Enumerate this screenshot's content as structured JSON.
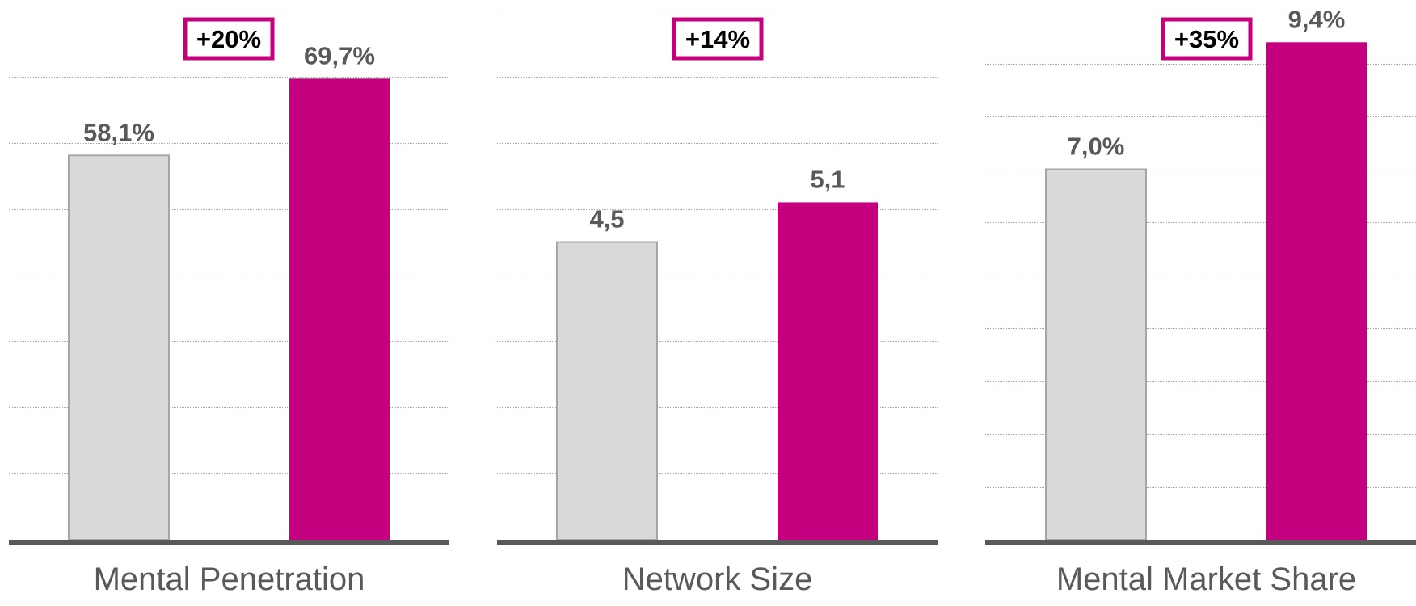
{
  "colors": {
    "baseline_bar": "#d9d9d9",
    "baseline_bar_border": "#a6a6a6",
    "highlight_bar": "#c5007f",
    "delta_border": "#c5007f",
    "value_text": "#595959",
    "category_text": "#595959",
    "axis_line": "#595959",
    "grid": "#a6a6a6"
  },
  "chart_data": [
    {
      "type": "bar",
      "xlabel": "Mental Penetration",
      "categories": [
        "baseline",
        "highlight"
      ],
      "values": [
        58.1,
        69.7
      ],
      "value_labels": [
        "58,1%",
        "69,7%"
      ],
      "delta_label": "+20%",
      "ylim": [
        0,
        80
      ],
      "grid": true,
      "grid_step": 10,
      "legend": "none"
    },
    {
      "type": "bar",
      "xlabel": "Network Size",
      "categories": [
        "baseline",
        "highlight"
      ],
      "values": [
        4.5,
        5.1
      ],
      "value_labels": [
        "4,5",
        "5,1"
      ],
      "delta_label": "+14%",
      "ylim": [
        0,
        8
      ],
      "grid": true,
      "grid_step": 1,
      "legend": "none"
    },
    {
      "type": "bar",
      "xlabel": "Mental Market Share",
      "categories": [
        "baseline",
        "highlight"
      ],
      "values": [
        7.0,
        9.4
      ],
      "value_labels": [
        "7,0%",
        "9,4%"
      ],
      "delta_label": "+35%",
      "ylim": [
        0,
        10
      ],
      "grid": true,
      "grid_step": 1,
      "legend": "none"
    }
  ]
}
